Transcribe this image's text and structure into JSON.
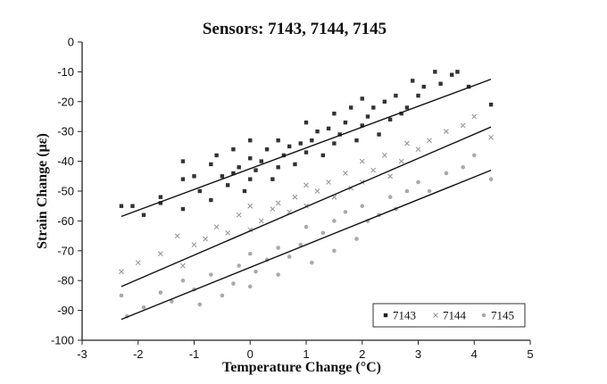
{
  "chart_data": {
    "type": "scatter",
    "title": "Sensors: 7143, 7144, 7145",
    "xlabel": "Temperature Change (°C)",
    "ylabel": "Strain Change (με)",
    "xlim": [
      -3,
      5
    ],
    "ylim": [
      -100,
      0
    ],
    "xticks": [
      "-3",
      "-2",
      "-1",
      "0",
      "1",
      "2",
      "3",
      "4",
      "5"
    ],
    "yticks": [
      "0",
      "-10",
      "-20",
      "-30",
      "-40",
      "-50",
      "-60",
      "-70",
      "-80",
      "-90",
      "-100"
    ],
    "grid": false,
    "legend_position": "bottom-right",
    "series": [
      {
        "name": "7143",
        "marker": "square",
        "color": "#333333",
        "x": [
          -2.3,
          -2.1,
          -1.9,
          -1.6,
          -1.6,
          -1.2,
          -1.2,
          -1.2,
          -1.0,
          -0.9,
          -0.7,
          -0.7,
          -0.6,
          -0.5,
          -0.4,
          -0.3,
          -0.3,
          -0.2,
          -0.1,
          0.0,
          0.0,
          0.0,
          0.1,
          0.2,
          0.3,
          0.4,
          0.5,
          0.5,
          0.6,
          0.7,
          0.8,
          0.9,
          1.0,
          1.0,
          1.1,
          1.2,
          1.3,
          1.4,
          1.5,
          1.5,
          1.6,
          1.7,
          1.8,
          1.9,
          2.0,
          2.0,
          2.1,
          2.2,
          2.3,
          2.4,
          2.5,
          2.6,
          2.7,
          2.8,
          2.9,
          3.0,
          3.1,
          3.3,
          3.4,
          3.6,
          3.7,
          3.9,
          4.3
        ],
        "y": [
          -55,
          -55,
          -58,
          -52,
          -54,
          -40,
          -46,
          -56,
          -45,
          -50,
          -41,
          -53,
          -38,
          -45,
          -48,
          -36,
          -44,
          -42,
          -50,
          -33,
          -39,
          -46,
          -43,
          -40,
          -36,
          -46,
          -33,
          -42,
          -38,
          -35,
          -41,
          -34,
          -27,
          -37,
          -33,
          -30,
          -38,
          -29,
          -24,
          -34,
          -31,
          -27,
          -22,
          -33,
          -19,
          -28,
          -25,
          -22,
          -31,
          -20,
          -26,
          -18,
          -24,
          -22,
          -13,
          -18,
          -15,
          -10,
          -14,
          -11,
          -10,
          -15,
          -21
        ]
      },
      {
        "name": "7144",
        "marker": "x",
        "color": "#999999",
        "x": [
          -2.3,
          -2.0,
          -1.6,
          -1.3,
          -1.2,
          -1.0,
          -0.8,
          -0.6,
          -0.4,
          -0.2,
          0.0,
          0.0,
          0.2,
          0.4,
          0.5,
          0.7,
          0.8,
          1.0,
          1.0,
          1.2,
          1.4,
          1.5,
          1.7,
          1.8,
          2.0,
          2.0,
          2.2,
          2.4,
          2.5,
          2.7,
          2.8,
          3.0,
          3.2,
          3.5,
          3.8,
          4.0,
          4.3
        ],
        "y": [
          -77,
          -74,
          -71,
          -65,
          -75,
          -68,
          -66,
          -62,
          -64,
          -58,
          -55,
          -63,
          -60,
          -56,
          -54,
          -57,
          -52,
          -48,
          -55,
          -50,
          -47,
          -52,
          -44,
          -49,
          -40,
          -47,
          -43,
          -38,
          -45,
          -40,
          -34,
          -36,
          -33,
          -30,
          -28,
          -25,
          -32
        ]
      },
      {
        "name": "7145",
        "marker": "circle",
        "color": "#aaaaaa",
        "x": [
          -2.3,
          -2.2,
          -1.9,
          -1.6,
          -1.4,
          -1.2,
          -1.0,
          -0.9,
          -0.7,
          -0.5,
          -0.3,
          -0.2,
          0.0,
          0.0,
          0.1,
          0.3,
          0.5,
          0.5,
          0.7,
          0.9,
          1.0,
          1.1,
          1.3,
          1.5,
          1.5,
          1.7,
          1.9,
          2.0,
          2.1,
          2.3,
          2.5,
          2.6,
          2.8,
          3.0,
          3.2,
          3.5,
          3.8,
          4.0,
          4.3
        ],
        "y": [
          -85,
          -92,
          -89,
          -84,
          -87,
          -80,
          -83,
          -88,
          -78,
          -85,
          -81,
          -75,
          -71,
          -82,
          -77,
          -73,
          -69,
          -78,
          -72,
          -68,
          -62,
          -74,
          -64,
          -60,
          -70,
          -57,
          -66,
          -55,
          -60,
          -58,
          -52,
          -56,
          -50,
          -47,
          -50,
          -44,
          -42,
          -38,
          -46
        ]
      }
    ],
    "trendlines": [
      {
        "series": "7143",
        "x": [
          -2.3,
          4.3
        ],
        "y": [
          -58.5,
          -12.5
        ]
      },
      {
        "series": "7144",
        "x": [
          -2.3,
          4.3
        ],
        "y": [
          -82,
          -28.5
        ]
      },
      {
        "series": "7145",
        "x": [
          -2.3,
          4.3
        ],
        "y": [
          -93,
          -43
        ]
      }
    ]
  }
}
